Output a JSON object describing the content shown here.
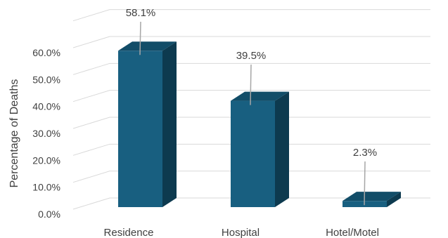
{
  "chart_data": {
    "type": "bar",
    "title": "",
    "xlabel": "",
    "ylabel": "Percentage of Deaths",
    "categories": [
      "Residence",
      "Hospital",
      "Hotel/Motel"
    ],
    "values": [
      58.1,
      39.5,
      2.3
    ],
    "data_labels": [
      "58.1%",
      "39.5%",
      "2.3%"
    ],
    "y_ticks": [
      "0.0%",
      "10.0%",
      "20.0%",
      "30.0%",
      "40.0%",
      "50.0%",
      "60.0%"
    ],
    "ylim": [
      0,
      70
    ],
    "grid": true,
    "legend": "none",
    "three_d": true,
    "colors": {
      "bar_front": "#185f80",
      "bar_top": "#124d68",
      "bar_side": "#0d3a4f",
      "grid": "#d9d9d9",
      "text": "#404040",
      "leader": "#a6a6a6"
    }
  }
}
